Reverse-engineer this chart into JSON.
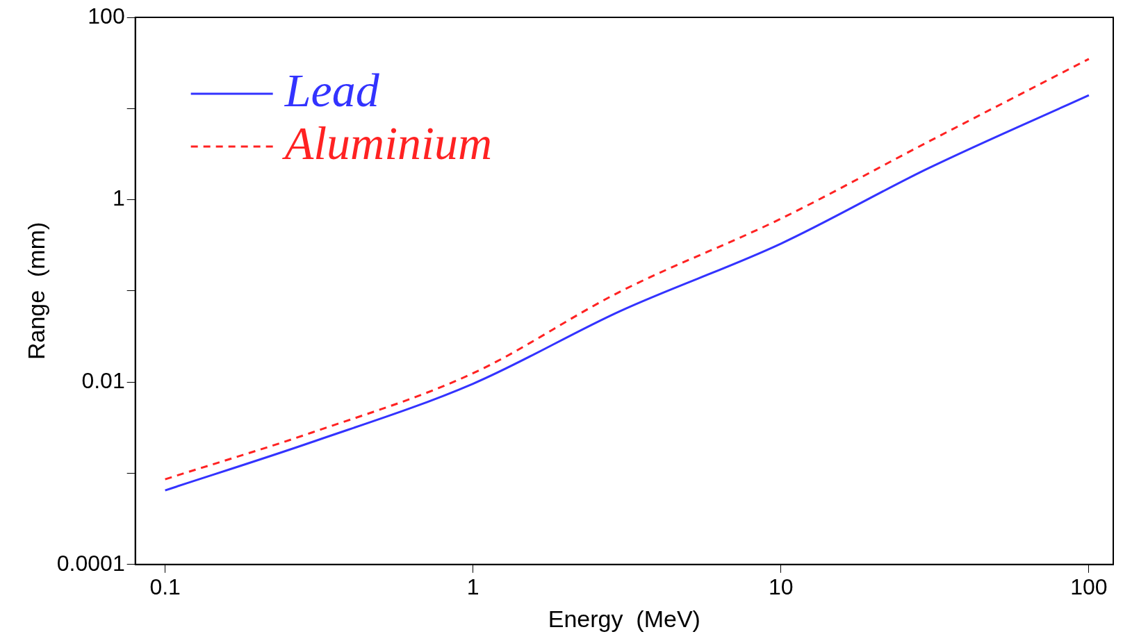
{
  "chart_data": {
    "type": "line",
    "xlabel": "Energy  (MeV)",
    "ylabel": "Range  (mm)",
    "log": "xy",
    "grid": false,
    "legend": "top left",
    "marker": "none",
    "xlim": [
      0.08,
      120
    ],
    "ylim": [
      0.0001,
      100
    ],
    "xticks": [
      0.1,
      1,
      10,
      100
    ],
    "yticks": [
      0.0001,
      {
        "value": 0.001,
        "label": null
      },
      0.01,
      {
        "value": 0.1,
        "label": null
      },
      1,
      {
        "value": 10,
        "label": null
      },
      100
    ],
    "series": [
      {
        "name": "Lead",
        "color": "#3333ff",
        "line_style": "solid",
        "x": [
          0.1,
          0.3,
          1,
          3,
          10,
          30,
          100
        ],
        "values": [
          0.00065,
          0.0022,
          0.0096,
          0.06,
          0.33,
          2.2,
          14
        ]
      },
      {
        "name": "Aluminium",
        "color": "#ff2222",
        "line_style": "dashed",
        "x": [
          0.1,
          0.3,
          1,
          3,
          10,
          30,
          100
        ],
        "values": [
          0.00086,
          0.0028,
          0.0125,
          0.098,
          0.62,
          4.3,
          35
        ]
      }
    ]
  }
}
